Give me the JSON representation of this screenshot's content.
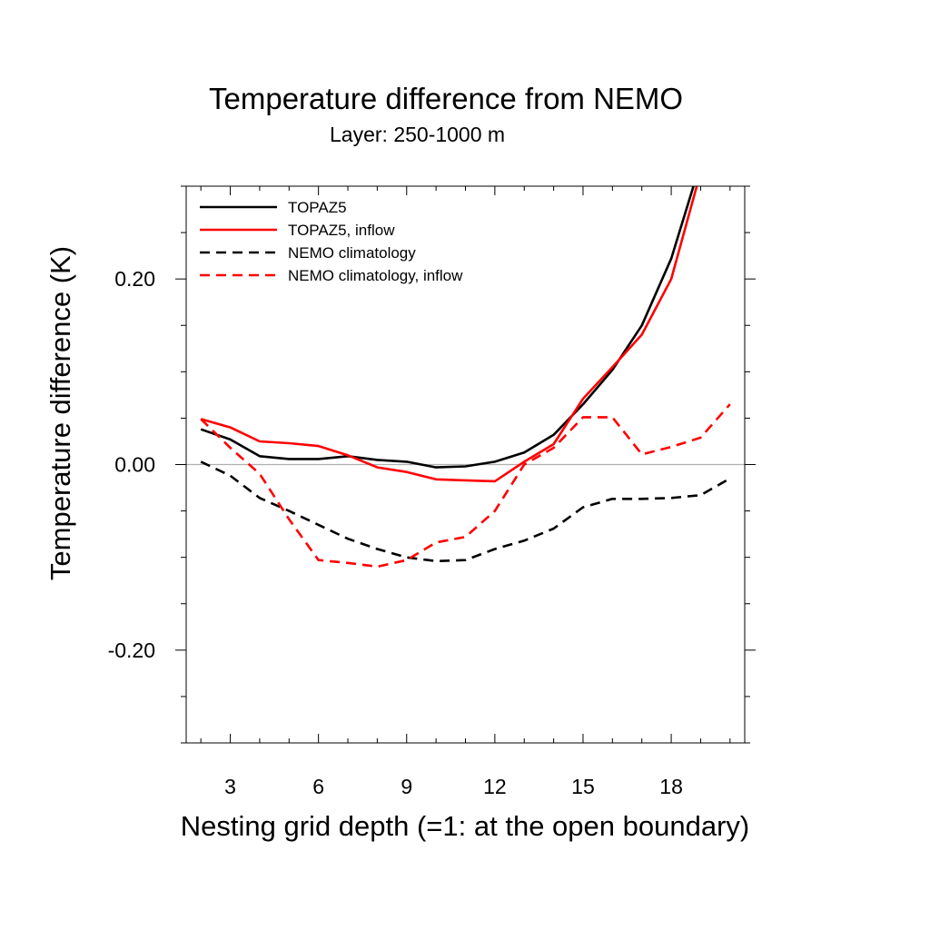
{
  "chart_data": {
    "type": "line",
    "title": "Temperature difference from NEMO",
    "subtitle": "Layer: 250-1000 m",
    "xlabel": "Nesting grid depth (=1: at the open boundary)",
    "ylabel": "Temperature difference (K)",
    "xlim": [
      1.5,
      20.5
    ],
    "ylim": [
      -0.3,
      0.3
    ],
    "xticks": [
      3,
      6,
      9,
      12,
      15,
      18
    ],
    "xtick_labels": [
      "3",
      "6",
      "9",
      "12",
      "15",
      "18"
    ],
    "yticks": [
      -0.2,
      0.0,
      0.2
    ],
    "ytick_labels": [
      "-0.20",
      "0.00",
      "0.20"
    ],
    "reference_line": 0.0,
    "legend_position": "top-left",
    "series": [
      {
        "name": "TOPAZ5",
        "color": "#000000",
        "style": "solid",
        "x": [
          2,
          3,
          4,
          5,
          6,
          7,
          8,
          9,
          10,
          11,
          12,
          13,
          14,
          15,
          16,
          17,
          18,
          19
        ],
        "y": [
          0.038,
          0.027,
          0.009,
          0.006,
          0.006,
          0.009,
          0.005,
          0.003,
          -0.003,
          -0.002,
          0.003,
          0.013,
          0.032,
          0.065,
          0.102,
          0.15,
          0.222,
          0.325
        ]
      },
      {
        "name": "TOPAZ5, inflow",
        "color": "#ff0000",
        "style": "solid",
        "x": [
          2,
          3,
          4,
          5,
          6,
          7,
          8,
          9,
          10,
          11,
          12,
          13,
          14,
          15,
          16,
          17,
          18,
          19
        ],
        "y": [
          0.049,
          0.04,
          0.025,
          0.023,
          0.02,
          0.01,
          -0.003,
          -0.008,
          -0.016,
          -0.017,
          -0.018,
          0.003,
          0.022,
          0.071,
          0.105,
          0.14,
          0.2,
          0.315
        ]
      },
      {
        "name": "NEMO climatology",
        "color": "#000000",
        "style": "dashed",
        "x": [
          2,
          3,
          4,
          5,
          6,
          7,
          8,
          9,
          10,
          11,
          12,
          13,
          14,
          15,
          16,
          17,
          18,
          19,
          20
        ],
        "y": [
          0.003,
          -0.012,
          -0.036,
          -0.05,
          -0.065,
          -0.08,
          -0.091,
          -0.1,
          -0.104,
          -0.103,
          -0.091,
          -0.082,
          -0.069,
          -0.046,
          -0.037,
          -0.037,
          -0.036,
          -0.033,
          -0.015
        ]
      },
      {
        "name": "NEMO climatology, inflow",
        "color": "#ff0000",
        "style": "dashed",
        "x": [
          2,
          3,
          4,
          5,
          6,
          7,
          8,
          9,
          10,
          11,
          12,
          13,
          14,
          15,
          16,
          17,
          18,
          19,
          20
        ],
        "y": [
          0.049,
          0.018,
          -0.01,
          -0.059,
          -0.103,
          -0.106,
          -0.11,
          -0.103,
          -0.084,
          -0.078,
          -0.05,
          0.0,
          0.018,
          0.051,
          0.051,
          0.011,
          0.019,
          0.029,
          0.065
        ]
      }
    ]
  }
}
